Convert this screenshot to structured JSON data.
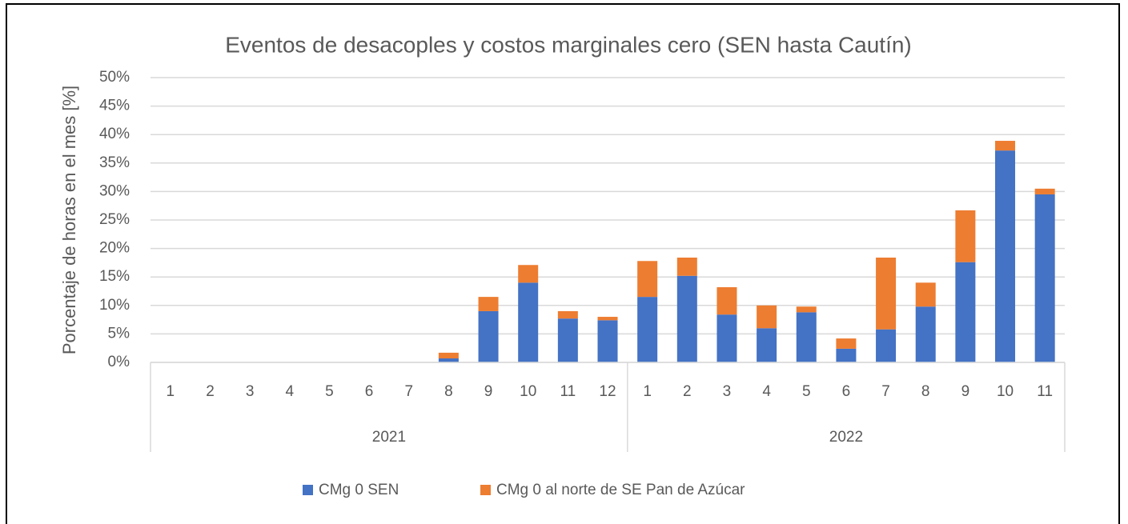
{
  "chart_data": {
    "type": "stacked_bar",
    "title": "Eventos de desacoples y costos marginales cero (SEN hasta Cautín)",
    "y_label": "Porcentaje de horas en el mes [%]",
    "groups": [
      {
        "name": "2021",
        "categories": [
          "1",
          "2",
          "3",
          "4",
          "5",
          "6",
          "7",
          "8",
          "9",
          "10",
          "11",
          "12"
        ]
      },
      {
        "name": "2022",
        "categories": [
          "1",
          "2",
          "3",
          "4",
          "5",
          "6",
          "7",
          "8",
          "9",
          "10",
          "11"
        ]
      }
    ],
    "series": [
      {
        "name": "CMg 0 SEN",
        "color": "#4472c4",
        "values": [
          0,
          0,
          0,
          0,
          0,
          0,
          0,
          0.7,
          9.0,
          14.0,
          7.7,
          7.4,
          11.5,
          15.2,
          8.4,
          6.0,
          8.8,
          2.4,
          5.8,
          9.8,
          17.6,
          37.2,
          29.5
        ]
      },
      {
        "name": "CMg 0 al norte de SE Pan de Azúcar",
        "color": "#ed7d31",
        "values": [
          0,
          0,
          0,
          0,
          0,
          0,
          0,
          1.0,
          2.5,
          3.1,
          1.3,
          0.6,
          6.3,
          3.2,
          4.8,
          4.0,
          1.0,
          1.8,
          12.6,
          4.2,
          9.1,
          1.7,
          1.0
        ]
      }
    ],
    "ylim": [
      0,
      50
    ],
    "yticks": [
      {
        "value": 0,
        "label": "0%"
      },
      {
        "value": 5,
        "label": "5%"
      },
      {
        "value": 10,
        "label": "10%"
      },
      {
        "value": 15,
        "label": "15%"
      },
      {
        "value": 20,
        "label": "20%"
      },
      {
        "value": 25,
        "label": "25%"
      },
      {
        "value": 30,
        "label": "30%"
      },
      {
        "value": 35,
        "label": "35%"
      },
      {
        "value": 40,
        "label": "40%"
      },
      {
        "value": 45,
        "label": "45%"
      },
      {
        "value": 50,
        "label": "50%"
      }
    ],
    "grid": true,
    "legend": "bottom"
  }
}
